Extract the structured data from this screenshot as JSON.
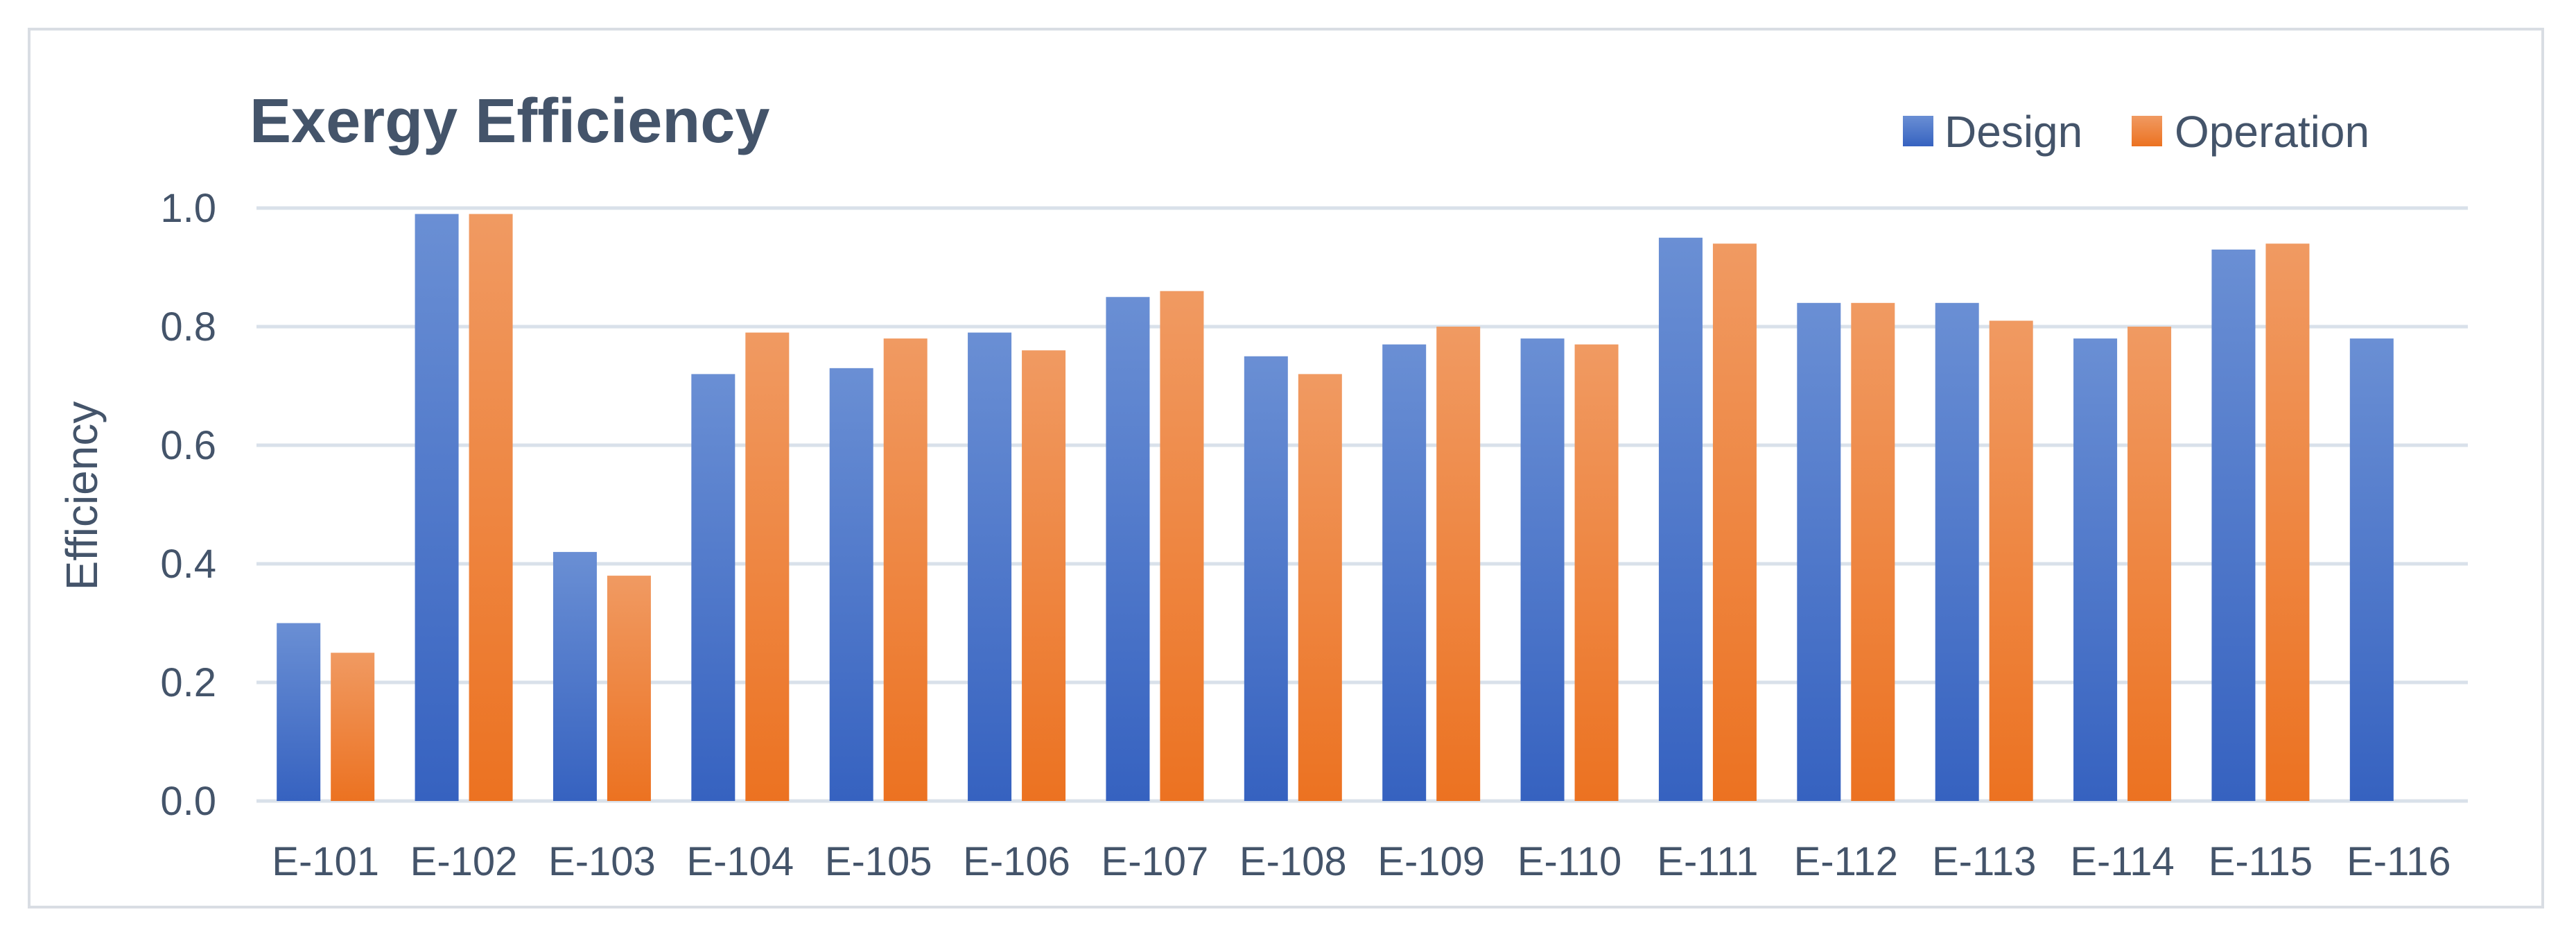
{
  "chart_data": {
    "type": "bar",
    "title": "Exergy Efficiency",
    "xlabel": "",
    "ylabel": "Efficiency",
    "ylim": [
      0,
      1.0
    ],
    "yticks": [
      "0.0",
      "0.2",
      "0.4",
      "0.6",
      "0.8",
      "1.0"
    ],
    "grid": true,
    "legend_position": "top-right",
    "categories": [
      "E-101",
      "E-102",
      "E-103",
      "E-104",
      "E-105",
      "E-106",
      "E-107",
      "E-108",
      "E-109",
      "E-110",
      "E-111",
      "E-112",
      "E-113",
      "E-114",
      "E-115",
      "E-116"
    ],
    "series": [
      {
        "name": "Design",
        "color": "#4472c4",
        "values": [
          0.3,
          0.99,
          0.42,
          0.72,
          0.73,
          0.79,
          0.85,
          0.75,
          0.77,
          0.78,
          0.95,
          0.84,
          0.84,
          0.78,
          0.93,
          0.78
        ]
      },
      {
        "name": "Operation",
        "color": "#ed7d31",
        "values": [
          0.25,
          0.99,
          0.38,
          0.79,
          0.78,
          0.76,
          0.86,
          0.72,
          0.8,
          0.77,
          0.94,
          0.84,
          0.81,
          0.8,
          0.94,
          null
        ]
      }
    ]
  }
}
